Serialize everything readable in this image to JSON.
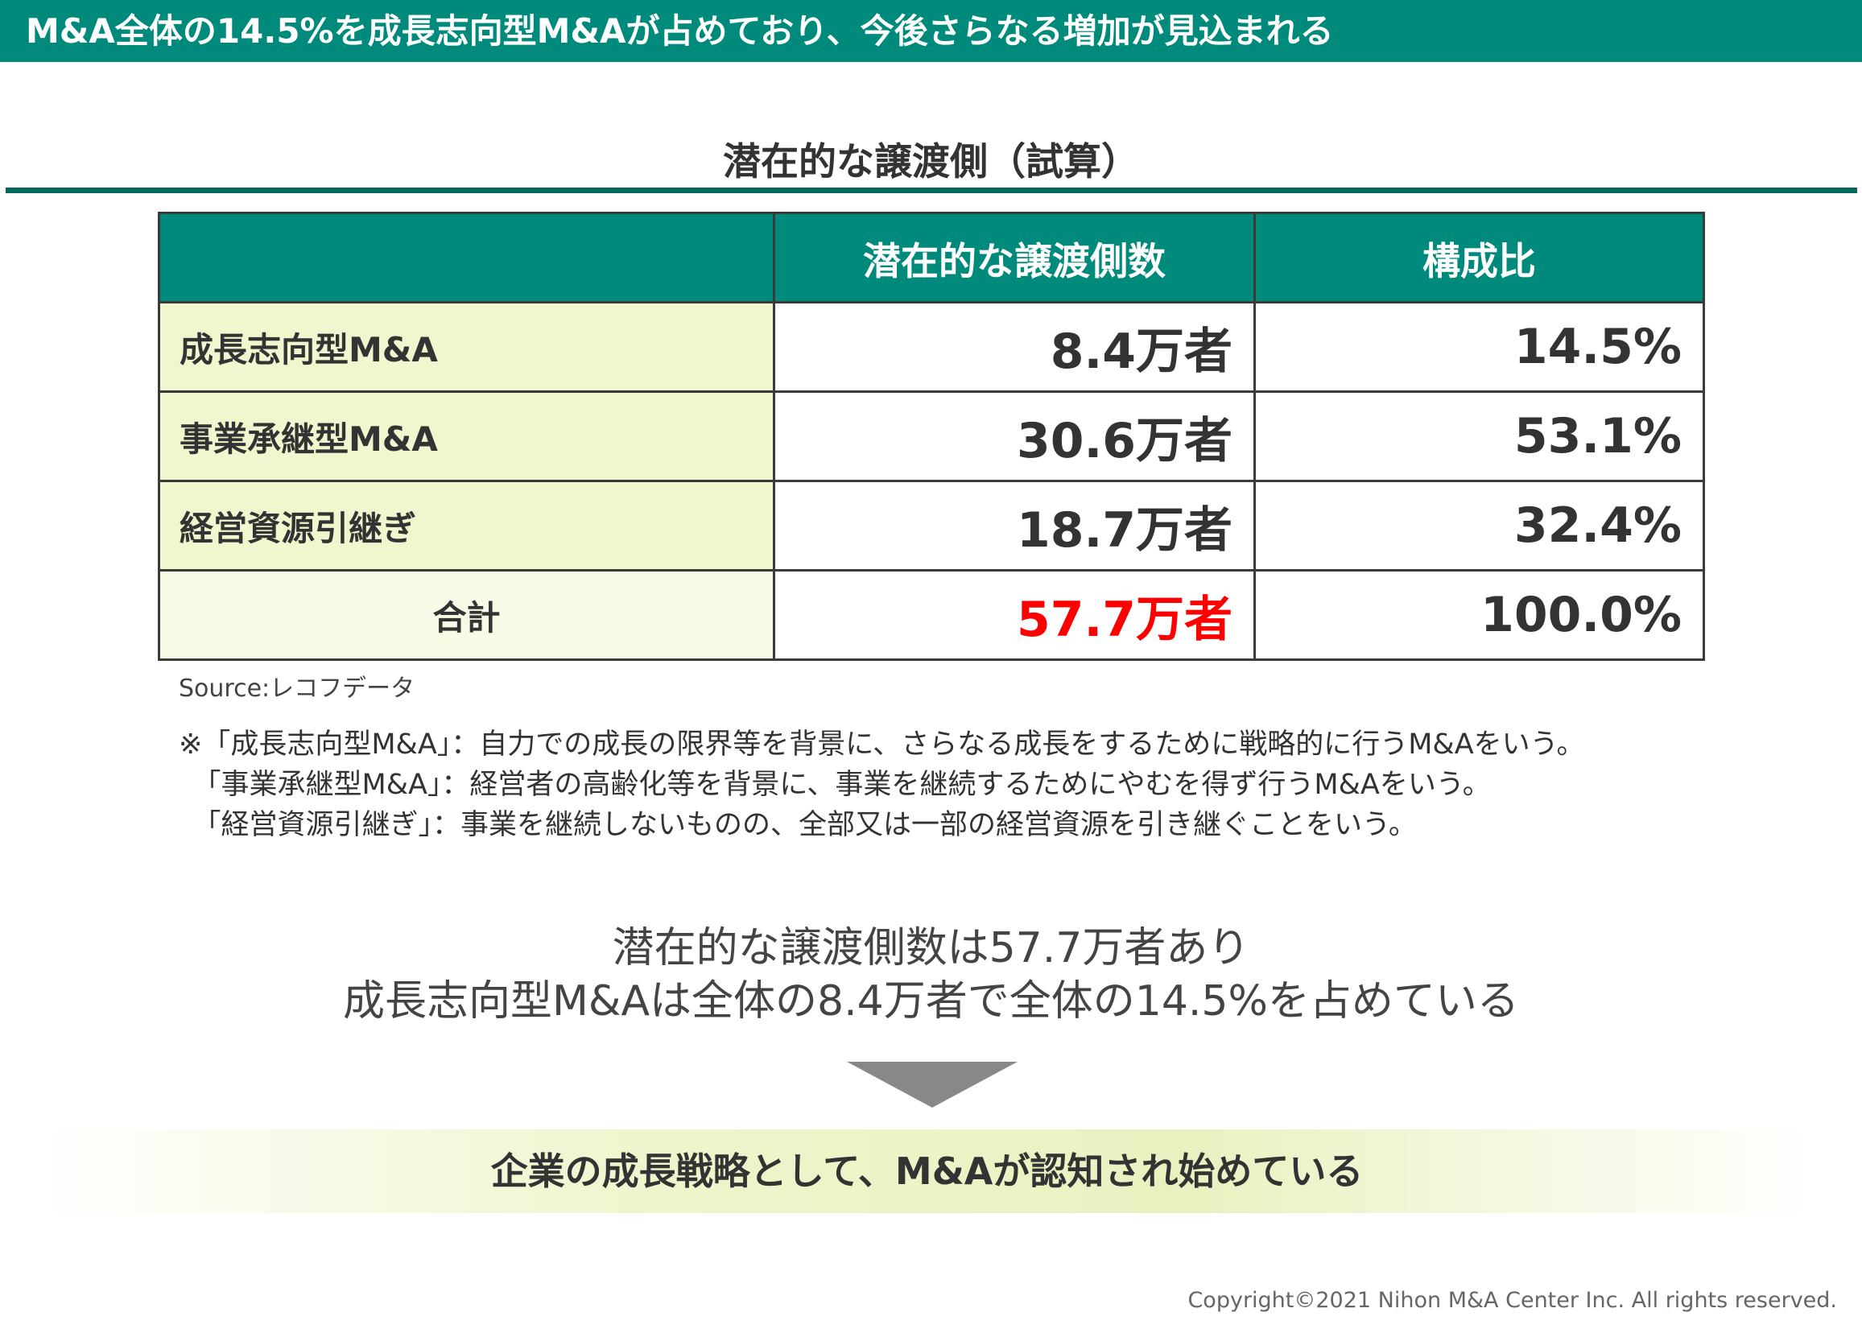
{
  "header": {
    "title": "M&A全体の14.5%を成長志向型M&Aが占めており、今後さらなる増加が見込まれる"
  },
  "subtitle": "潜在的な譲渡側（試算）",
  "table": {
    "columns": [
      "",
      "潜在的な譲渡側数",
      "構成比"
    ],
    "rows": [
      {
        "label": "成長志向型M&A",
        "count": "8.4万者",
        "ratio": "14.5%"
      },
      {
        "label": "事業承継型M&A",
        "count": "30.6万者",
        "ratio": "53.1%"
      },
      {
        "label": "経営資源引継ぎ",
        "count": "18.7万者",
        "ratio": "32.4%"
      }
    ],
    "total": {
      "label": "合計",
      "count": "57.7万者",
      "ratio": "100.0%"
    }
  },
  "source": "Source:レコフデータ",
  "notes": [
    "※「成長志向型M&A」：自力での成長の限界等を背景に、さらなる成長をするために戦略的に行うM&Aをいう。",
    "　「事業承継型M&A」：経営者の高齢化等を背景に、事業を継続するためにやむを得ず行うM&Aをいう。",
    "　「経営資源引継ぎ」：事業を継続しないものの、全部又は一部の経営資源を引き継ぐことをいう。"
  ],
  "summary": [
    "潜在的な譲渡側数は57.7万者あり",
    "成長志向型M&Aは全体の8.4万者で全体の14.5%を占めている"
  ],
  "conclusion": "企業の成長戦略として、M&Aが認知され始めている",
  "copyright": "Copyright©2021 Nihon M&A Center Inc. All rights reserved.",
  "colors": {
    "accent": "#008a7b",
    "highlight": "#ff0000"
  }
}
